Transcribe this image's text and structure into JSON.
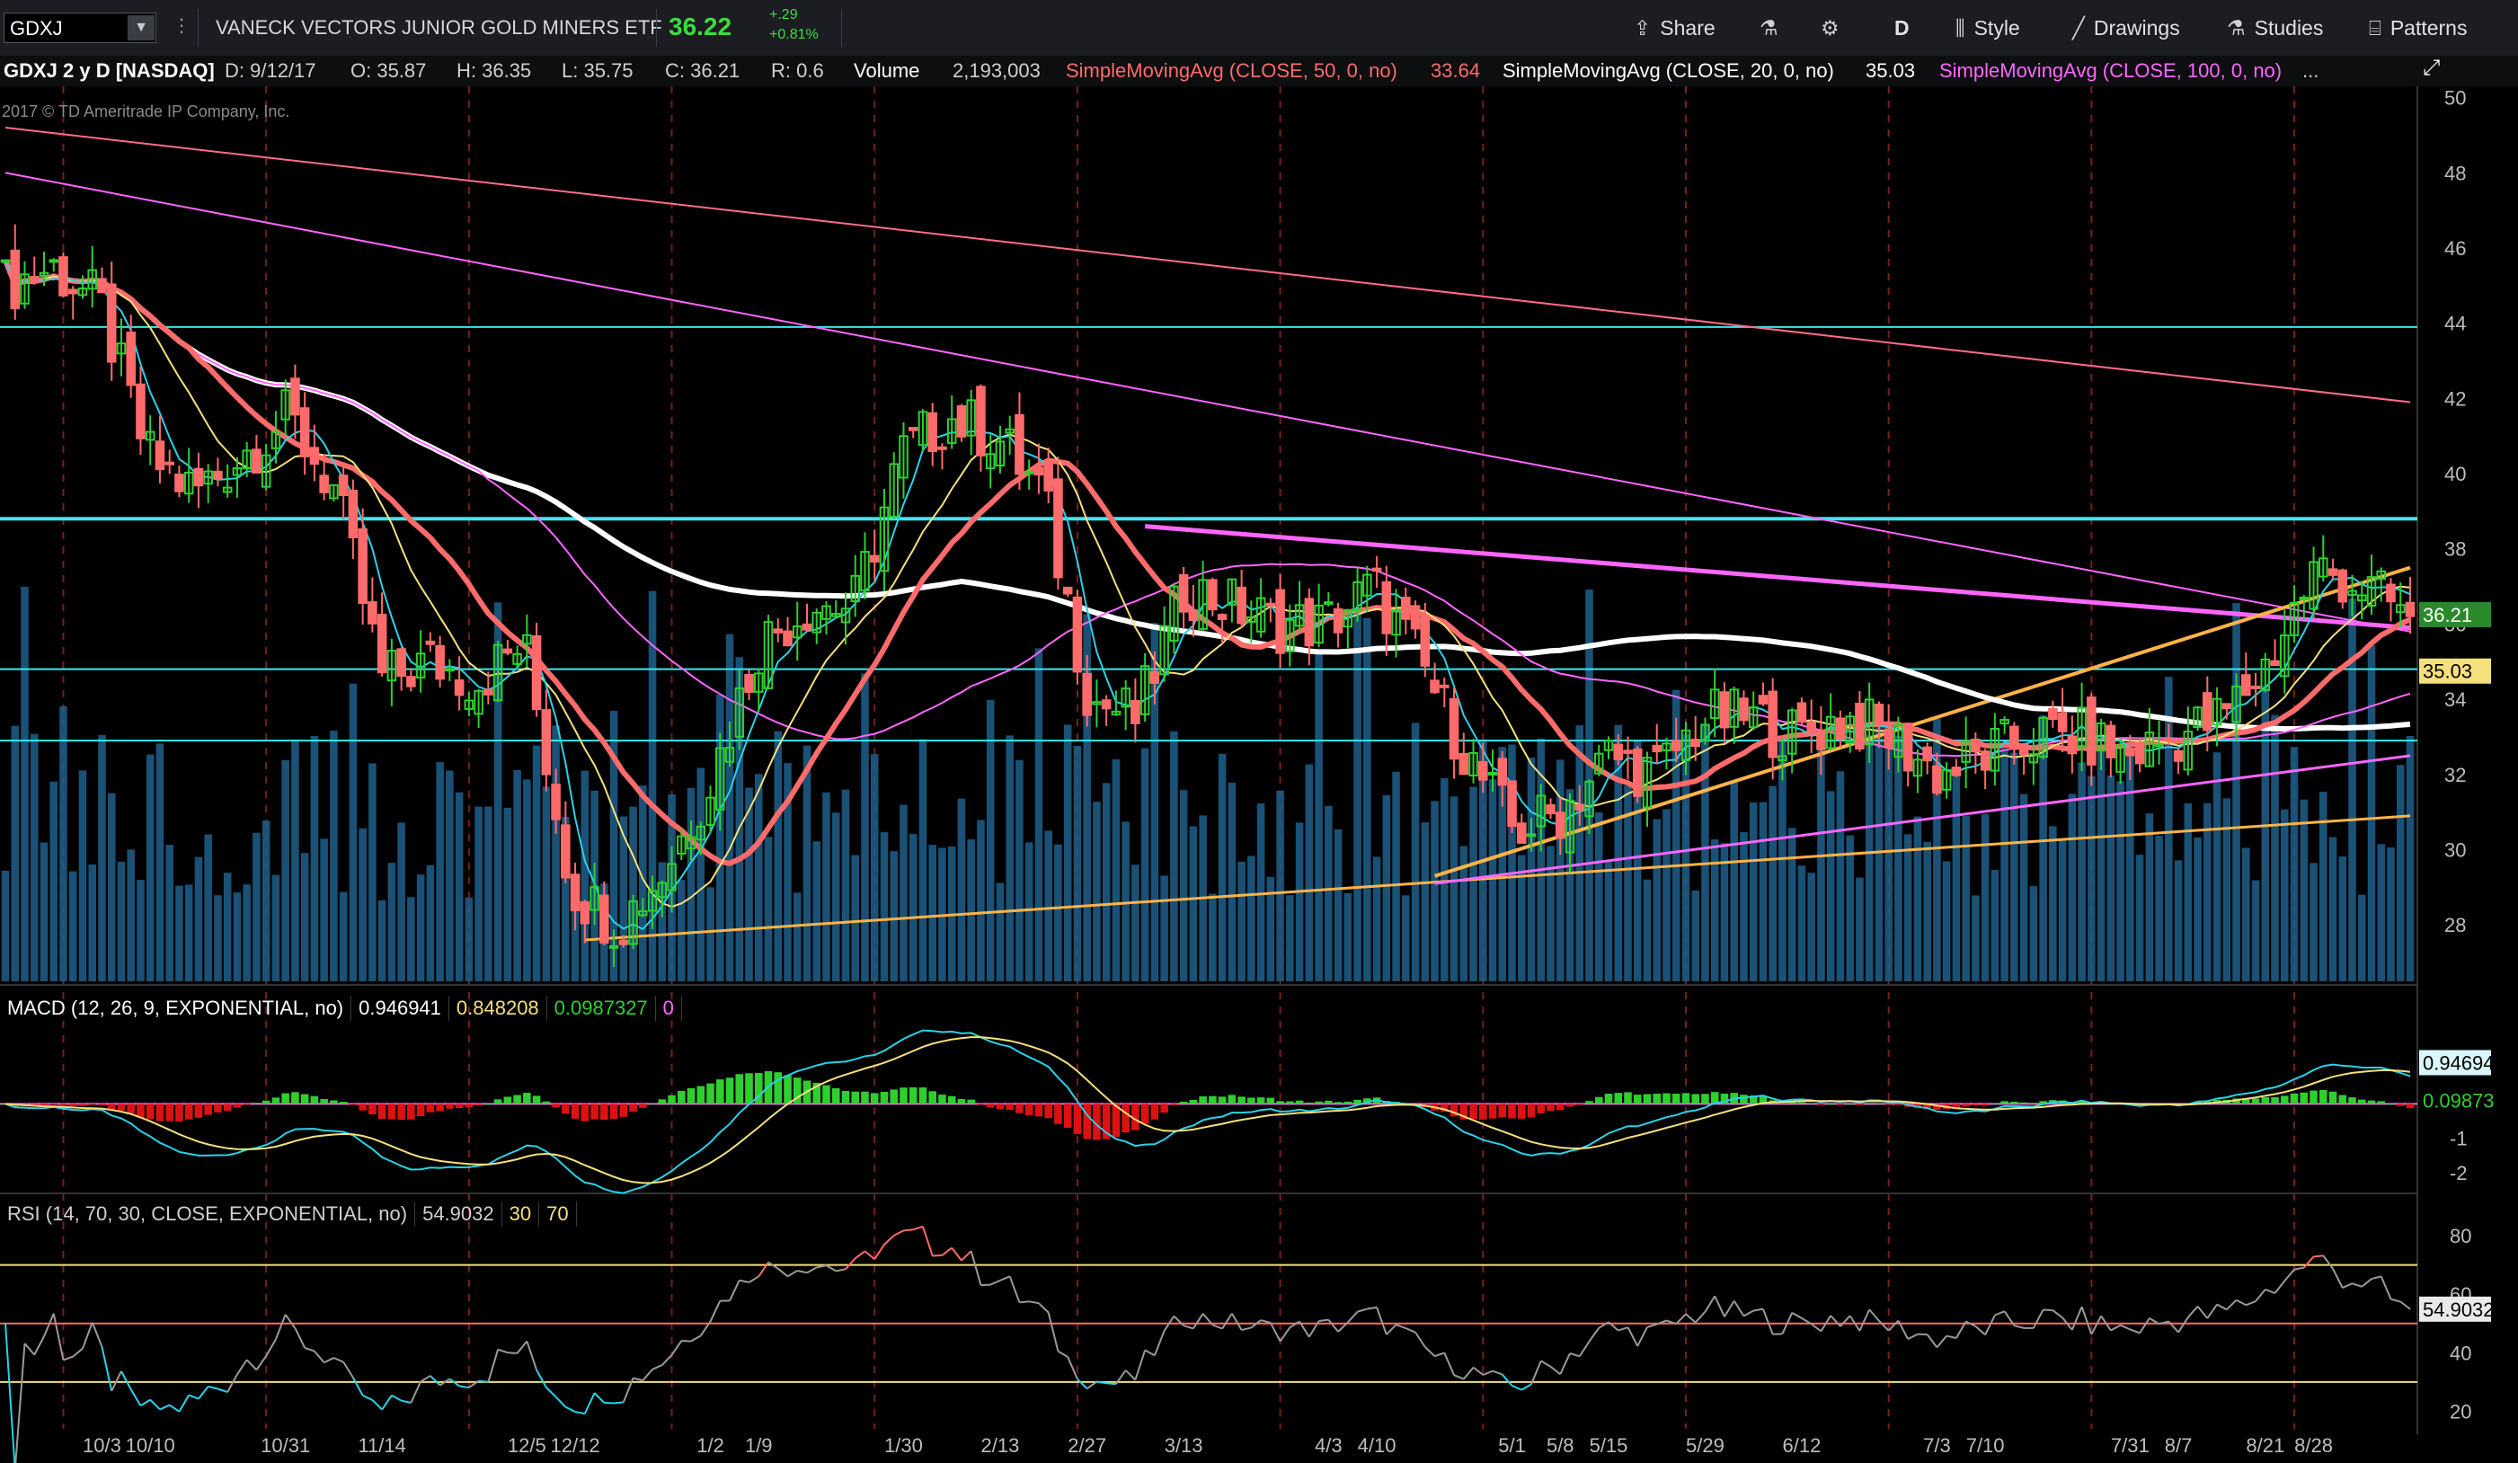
{
  "toolbar": {
    "symbol": "GDXJ",
    "company": "VANECK VECTORS JUNIOR GOLD MINERS ETF",
    "last": "36.22",
    "change": "+.29",
    "change_pct": "+0.81%",
    "share_label": "Share",
    "period_label": "D",
    "style_label": "Style",
    "drawings_label": "Drawings",
    "studies_label": "Studies",
    "patterns_label": "Patterns"
  },
  "infobar": {
    "title": "GDXJ 2 y D [NASDAQ]",
    "date": "D: 9/12/17",
    "open": "O: 35.87",
    "high": "H: 36.35",
    "low": "L: 35.75",
    "close": "C: 36.21",
    "range": "R: 0.6",
    "volume_label": "Volume",
    "volume_value": "2,193,003",
    "sma50_label": "SimpleMovingAvg (CLOSE, 50, 0, no)",
    "sma50_value": "33.64",
    "sma20_label": "SimpleMovingAvg (CLOSE, 20, 0, no)",
    "sma20_value": "35.03",
    "sma100_label": "SimpleMovingAvg (CLOSE, 100, 0, no)",
    "ellipsis": "..."
  },
  "copyright": "2017 © TD Ameritrade IP Company, Inc.",
  "macd_header": {
    "label": "MACD (12, 26, 9, EXPONENTIAL, no)",
    "value": "0.946941",
    "avg": "0.848208",
    "diff": "0.0987327",
    "zero": "0"
  },
  "rsi_header": {
    "label": "RSI (14, 70, 30, CLOSE, EXPONENTIAL, no)",
    "value": "54.9032",
    "low": "30",
    "high": "70"
  },
  "price_badges": {
    "last": "36.21",
    "sma20": "35.03"
  },
  "macd_badges": {
    "macd": "0.94694",
    "diff": "0.09873"
  },
  "rsi_badge": "54.9032",
  "colors": {
    "up": "#2fcf2f",
    "down": "#ff6b6b",
    "volume": "#1f5f8b",
    "sma50": "#ff6b6b",
    "sma100": "#ffffff",
    "sma20": "#f4e07c",
    "ema_cyan": "#27d3e8",
    "trend_pink": "#ff66ff",
    "trend_orange": "#ffb347",
    "hline_cyan": "#3be8ee",
    "macd_line": "#27d3e8",
    "macd_signal": "#f4e07c",
    "rsi_line": "#9a9a9a",
    "rsi_ob": "#ff6b6b",
    "rsi_os": "#27d3e8"
  },
  "chart_data": [
    {
      "type": "candlestick",
      "title": "GDXJ 2 y D [NASDAQ]",
      "ylim": [
        26.5,
        50.3
      ],
      "yticks": [
        28,
        30,
        32,
        34,
        36,
        38,
        40,
        42,
        44,
        46,
        48,
        50
      ],
      "x_axis_labels": [
        "10/3",
        "10/10",
        "10/31",
        "11/14",
        "12/5",
        "12/12",
        "1/2",
        "1/9",
        "1/30",
        "2/13",
        "2/27",
        "3/13",
        "4/3",
        "4/10",
        "5/1",
        "5/8",
        "5/15",
        "5/29",
        "6/12",
        "7/3",
        "7/10",
        "7/31",
        "8/7",
        "8/21",
        "8/28"
      ],
      "horizontal_levels": [
        43.9,
        38.8,
        34.8,
        32.9
      ],
      "last_close": 36.21,
      "last_date": "9/12/17",
      "sma_period_values": {
        "sma50": 33.64,
        "sma20": 35.03
      },
      "close_keypoints": [
        {
          "x": "9/19",
          "y": 45.0
        },
        {
          "x": "9/26",
          "y": 45.5
        },
        {
          "x": "10/3",
          "y": 44.5
        },
        {
          "x": "10/10",
          "y": 40.5
        },
        {
          "x": "10/17",
          "y": 39.5
        },
        {
          "x": "10/24",
          "y": 40.5
        },
        {
          "x": "10/31",
          "y": 41.5
        },
        {
          "x": "11/7",
          "y": 39.5
        },
        {
          "x": "11/14",
          "y": 34.5
        },
        {
          "x": "11/21",
          "y": 35.0
        },
        {
          "x": "11/28",
          "y": 34.5
        },
        {
          "x": "12/5",
          "y": 35.5
        },
        {
          "x": "12/12",
          "y": 29.0
        },
        {
          "x": "12/19",
          "y": 28.0
        },
        {
          "x": "12/27",
          "y": 29.5
        },
        {
          "x": "1/2",
          "y": 32.0
        },
        {
          "x": "1/9",
          "y": 35.5
        },
        {
          "x": "1/17",
          "y": 36.5
        },
        {
          "x": "1/23",
          "y": 36.5
        },
        {
          "x": "1/30",
          "y": 40.5
        },
        {
          "x": "2/6",
          "y": 41.5
        },
        {
          "x": "2/13",
          "y": 41.0
        },
        {
          "x": "2/21",
          "y": 39.5
        },
        {
          "x": "2/27",
          "y": 34.0
        },
        {
          "x": "3/6",
          "y": 33.5
        },
        {
          "x": "3/13",
          "y": 37.0
        },
        {
          "x": "3/20",
          "y": 36.5
        },
        {
          "x": "3/27",
          "y": 36.0
        },
        {
          "x": "4/3",
          "y": 36.0
        },
        {
          "x": "4/10",
          "y": 37.0
        },
        {
          "x": "4/17",
          "y": 35.0
        },
        {
          "x": "4/24",
          "y": 32.5
        },
        {
          "x": "5/1",
          "y": 30.5
        },
        {
          "x": "5/8",
          "y": 31.0
        },
        {
          "x": "5/15",
          "y": 32.5
        },
        {
          "x": "5/22",
          "y": 32.0
        },
        {
          "x": "5/29",
          "y": 33.5
        },
        {
          "x": "6/5",
          "y": 33.5
        },
        {
          "x": "6/12",
          "y": 33.0
        },
        {
          "x": "6/19",
          "y": 33.5
        },
        {
          "x": "6/26",
          "y": 33.0
        },
        {
          "x": "7/3",
          "y": 32.0
        },
        {
          "x": "7/10",
          "y": 32.5
        },
        {
          "x": "7/17",
          "y": 33.0
        },
        {
          "x": "7/24",
          "y": 33.0
        },
        {
          "x": "7/31",
          "y": 32.5
        },
        {
          "x": "8/7",
          "y": 33.0
        },
        {
          "x": "8/14",
          "y": 33.5
        },
        {
          "x": "8/21",
          "y": 35.0
        },
        {
          "x": "8/28",
          "y": 37.5
        },
        {
          "x": "9/5",
          "y": 37.0
        },
        {
          "x": "9/12",
          "y": 36.21
        }
      ],
      "macd": {
        "ylim": [
          -2.5,
          3.2
        ],
        "yticks": [
          -2,
          -1
        ],
        "last_macd": 0.946941,
        "last_signal": 0.848208,
        "last_diff": 0.0987327
      },
      "rsi": {
        "ylim": [
          14,
          92
        ],
        "yticks": [
          20,
          40,
          60,
          80
        ],
        "overbought": 70,
        "oversold": 30,
        "last": 54.9032
      }
    }
  ]
}
